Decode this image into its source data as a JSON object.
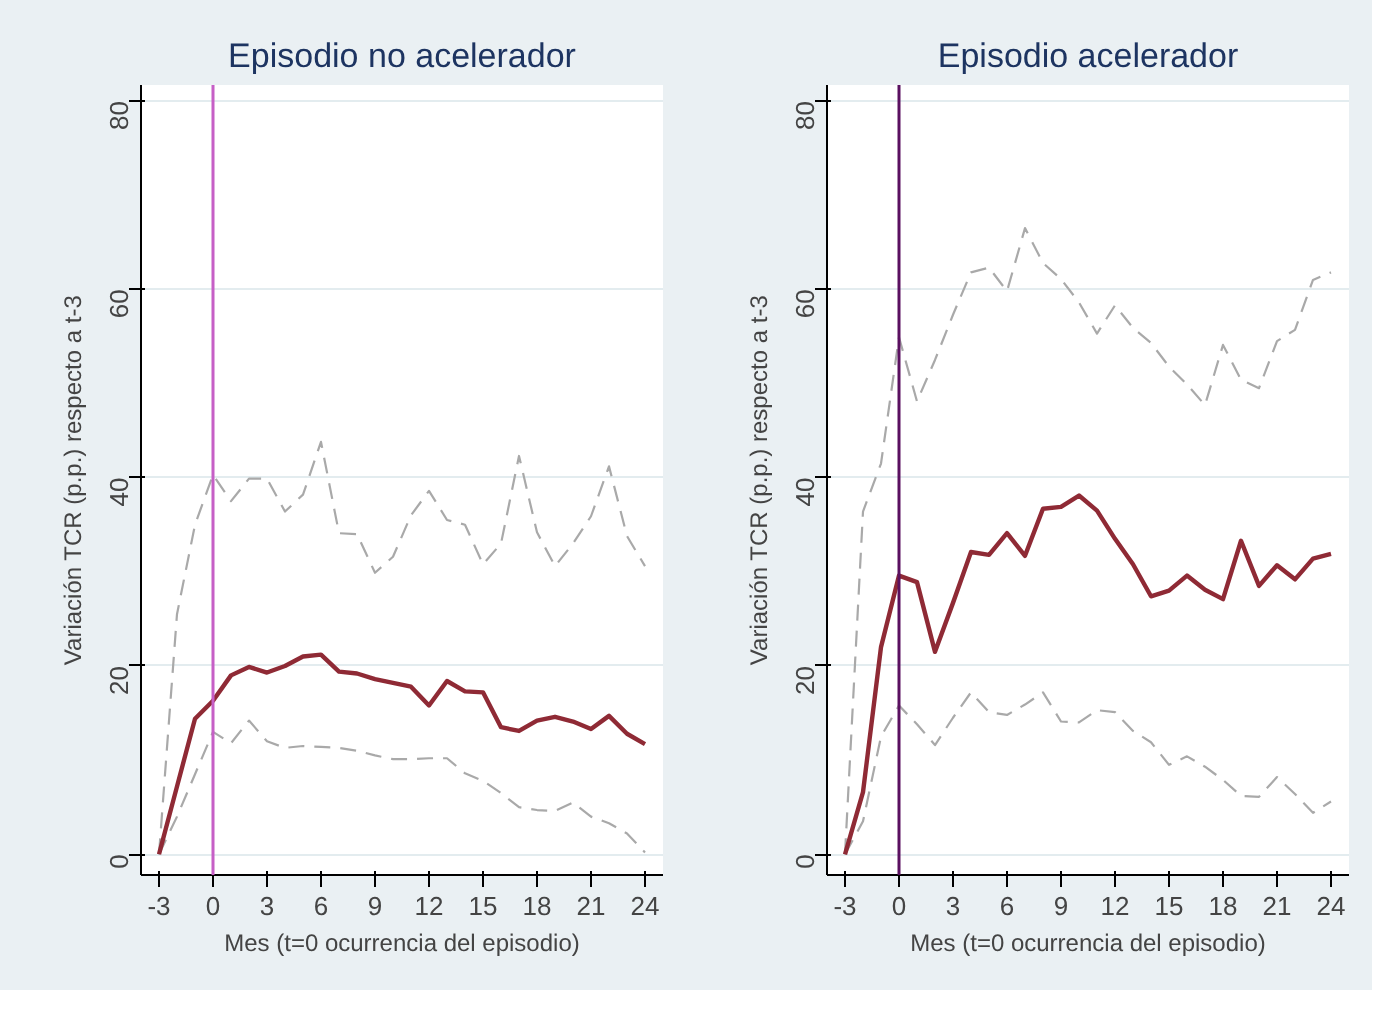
{
  "chart_data": [
    {
      "type": "line",
      "title": "Episodio no acelerador",
      "xlabel": "Mes (t=0 ocurrencia del episodio)",
      "ylabel": "Variación TCR (p.p.) respecto a t-3",
      "x": [
        -3,
        -2,
        -1,
        0,
        1,
        2,
        3,
        4,
        5,
        6,
        7,
        8,
        9,
        10,
        11,
        12,
        13,
        14,
        15,
        16,
        17,
        18,
        19,
        20,
        21,
        22,
        23,
        24
      ],
      "series": [
        {
          "color": "#a9a9a9",
          "line_style": "dashed",
          "values": [
            0,
            25.5,
            35,
            40.3,
            37.5,
            39.9,
            39.9,
            36.4,
            38.2,
            43.8,
            34.1,
            34,
            29.9,
            31.6,
            36,
            38.6,
            35.5,
            35,
            30.8,
            33,
            42.3,
            34.2,
            30.6,
            33,
            35.9,
            41.2,
            33.8,
            30.6
          ]
        },
        {
          "color": "#a9a9a9",
          "line_style": "dashed",
          "values": [
            0,
            4,
            8.5,
            13,
            11.8,
            14.2,
            12,
            11.3,
            11.5,
            11.4,
            11.3,
            11,
            10.5,
            10.1,
            10.1,
            10.2,
            10.2,
            8.6,
            7.8,
            6.5,
            5,
            4.7,
            4.6,
            5.5,
            4,
            3.3,
            2.2,
            0.2
          ]
        },
        {
          "color": "#8f2a35",
          "line_style": "solid",
          "values": [
            0,
            7.2,
            14.4,
            16.3,
            19,
            19.9,
            19.3,
            20,
            21,
            21.2,
            19.4,
            19.2,
            18.6,
            18.2,
            17.8,
            15.8,
            18.4,
            17.3,
            17.2,
            13.5,
            13.1,
            14.2,
            14.6,
            14.1,
            13.3,
            14.7,
            12.8,
            11.7
          ]
        }
      ],
      "xlim": [
        -4,
        25
      ],
      "ylim": [
        -2.2,
        81.7
      ],
      "xticks": [
        -3,
        0,
        3,
        6,
        9,
        12,
        15,
        18,
        21,
        24
      ],
      "yticks": [
        0,
        20,
        40,
        60,
        80
      ],
      "grid": "y",
      "ref_lines": [
        {
          "axis": "x",
          "value": 0,
          "color": "#c65fc6"
        }
      ]
    },
    {
      "type": "line",
      "title": "Episodio acelerador",
      "xlabel": "Mes (t=0 ocurrencia del episodio)",
      "ylabel": "Variación TCR (p.p.) respecto a t-3",
      "x": [
        -3,
        -2,
        -1,
        0,
        1,
        2,
        3,
        4,
        5,
        6,
        7,
        8,
        9,
        10,
        11,
        12,
        13,
        14,
        15,
        16,
        17,
        18,
        19,
        20,
        21,
        22,
        23,
        24
      ],
      "series": [
        {
          "color": "#a9a9a9",
          "line_style": "dashed",
          "values": [
            0,
            36.4,
            41.5,
            54.9,
            48.1,
            52.5,
            57.3,
            61.8,
            62.3,
            59.8,
            66.5,
            62.8,
            61.1,
            58.6,
            55.3,
            58.3,
            55.9,
            54.3,
            51.8,
            49.9,
            47.7,
            54.1,
            50.4,
            49.5,
            54.5,
            55.7,
            61,
            61.8
          ]
        },
        {
          "color": "#a9a9a9",
          "line_style": "dashed",
          "values": [
            0,
            3.5,
            12.5,
            15.8,
            13.8,
            11.6,
            14.5,
            17.2,
            15.1,
            14.8,
            15.9,
            17.2,
            14.1,
            14,
            15.3,
            15.1,
            13.1,
            11.9,
            9.5,
            10.4,
            9.3,
            7.9,
            6.2,
            6.1,
            8.2,
            6.4,
            4.4,
            5.6
          ]
        },
        {
          "color": "#8f2a35",
          "line_style": "solid",
          "values": [
            0,
            6.6,
            22,
            29.6,
            28.9,
            21.5,
            26.7,
            32.1,
            31.8,
            34.1,
            31.7,
            36.7,
            36.9,
            38.1,
            36.5,
            33.5,
            30.8,
            27.4,
            28,
            29.6,
            28.1,
            27.1,
            33.3,
            28.5,
            30.7,
            29.2,
            31.4,
            31.9
          ]
        }
      ],
      "xlim": [
        -4,
        25
      ],
      "ylim": [
        -2.2,
        81.7
      ],
      "xticks": [
        -3,
        0,
        3,
        6,
        9,
        12,
        15,
        18,
        21,
        24
      ],
      "yticks": [
        0,
        20,
        40,
        60,
        80
      ],
      "grid": "y",
      "ref_lines": [
        {
          "axis": "x",
          "value": 0,
          "color": "#5a1060"
        }
      ]
    }
  ]
}
